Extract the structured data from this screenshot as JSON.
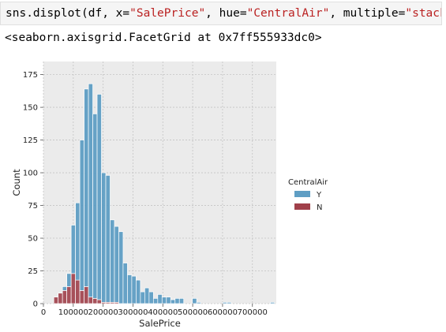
{
  "code_cell": {
    "prefix": "sns.displot(df, x=",
    "arg_x": "\"SalePrice\"",
    "sep1": ", hue=",
    "arg_hue": "\"CentralAir\"",
    "sep2": ", multiple=",
    "arg_multiple": "\"stack\"",
    "suffix": ")"
  },
  "output_text": "<seaborn.axisgrid.FacetGrid at 0x7ff555933dc0>",
  "chart_data": {
    "type": "bar",
    "stacked": true,
    "xlabel": "SalePrice",
    "ylabel": "Count",
    "xlim": [
      0,
      780000
    ],
    "ylim": [
      0,
      185
    ],
    "xticks": [
      0,
      100000,
      200000,
      300000,
      400000,
      500000,
      600000,
      700000
    ],
    "xtick_labels": [
      "0",
      "100000",
      "200000",
      "300000",
      "400000",
      "500000",
      "600000",
      "700000"
    ],
    "yticks": [
      0,
      25,
      50,
      75,
      100,
      125,
      150,
      175
    ],
    "grid": true,
    "legend": {
      "title": "CentralAir",
      "placement": "right",
      "entries": [
        "Y",
        "N"
      ]
    },
    "colors": {
      "Y": "#5f9ec4",
      "N": "#a0404a",
      "background": "#ebebeb",
      "grid": "#c4c4c4"
    },
    "bin_start": 34900,
    "bin_width": 14500,
    "series": [
      {
        "name": "Y",
        "values": [
          0,
          0,
          3,
          10,
          37,
          59,
          115,
          151,
          163,
          141,
          157,
          99,
          97,
          63,
          58,
          55,
          31,
          22,
          21,
          18,
          9,
          12,
          9,
          4,
          7,
          5,
          5,
          3,
          4,
          4,
          0,
          0,
          4,
          1,
          0,
          0,
          0,
          0,
          0,
          1,
          1,
          0,
          0,
          0,
          0,
          0,
          0,
          0,
          0,
          0,
          1
        ]
      },
      {
        "name": "N",
        "values": [
          5,
          8,
          10,
          13,
          23,
          18,
          10,
          13,
          5,
          4,
          3,
          1,
          1,
          1,
          1,
          0,
          0,
          0,
          0,
          0,
          0,
          0,
          0,
          0,
          0,
          0,
          0,
          0,
          0,
          0,
          0,
          0,
          0,
          0,
          0,
          0,
          0,
          0,
          0,
          0,
          0,
          0,
          0,
          0,
          0,
          0,
          0,
          0,
          0,
          0,
          0
        ]
      }
    ]
  }
}
